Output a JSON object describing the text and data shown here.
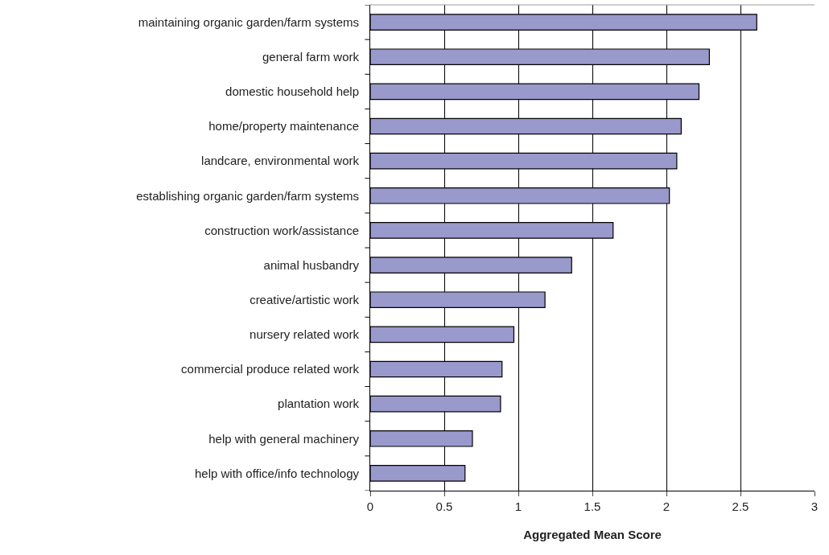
{
  "chart_data": {
    "type": "bar",
    "orientation": "horizontal",
    "xlabel": "Aggregated Mean Score",
    "categories": [
      "maintaining organic garden/farm systems",
      "general farm work",
      "domestic household help",
      "home/property maintenance",
      "landcare, environmental work",
      "establishing organic garden/farm systems",
      "construction work/assistance",
      "animal husbandry",
      "creative/artistic work",
      "nursery related work",
      "commercial produce related work",
      "plantation work",
      "help with general machinery",
      "help with office/info technology"
    ],
    "values": [
      2.61,
      2.29,
      2.22,
      2.1,
      2.07,
      2.02,
      1.64,
      1.36,
      1.18,
      0.97,
      0.89,
      0.88,
      0.69,
      0.64
    ],
    "color": "#9999cc",
    "xlim": [
      0,
      3
    ],
    "xticks": [
      0,
      0.5,
      1,
      1.5,
      2,
      2.5,
      3
    ],
    "grid": "x"
  }
}
